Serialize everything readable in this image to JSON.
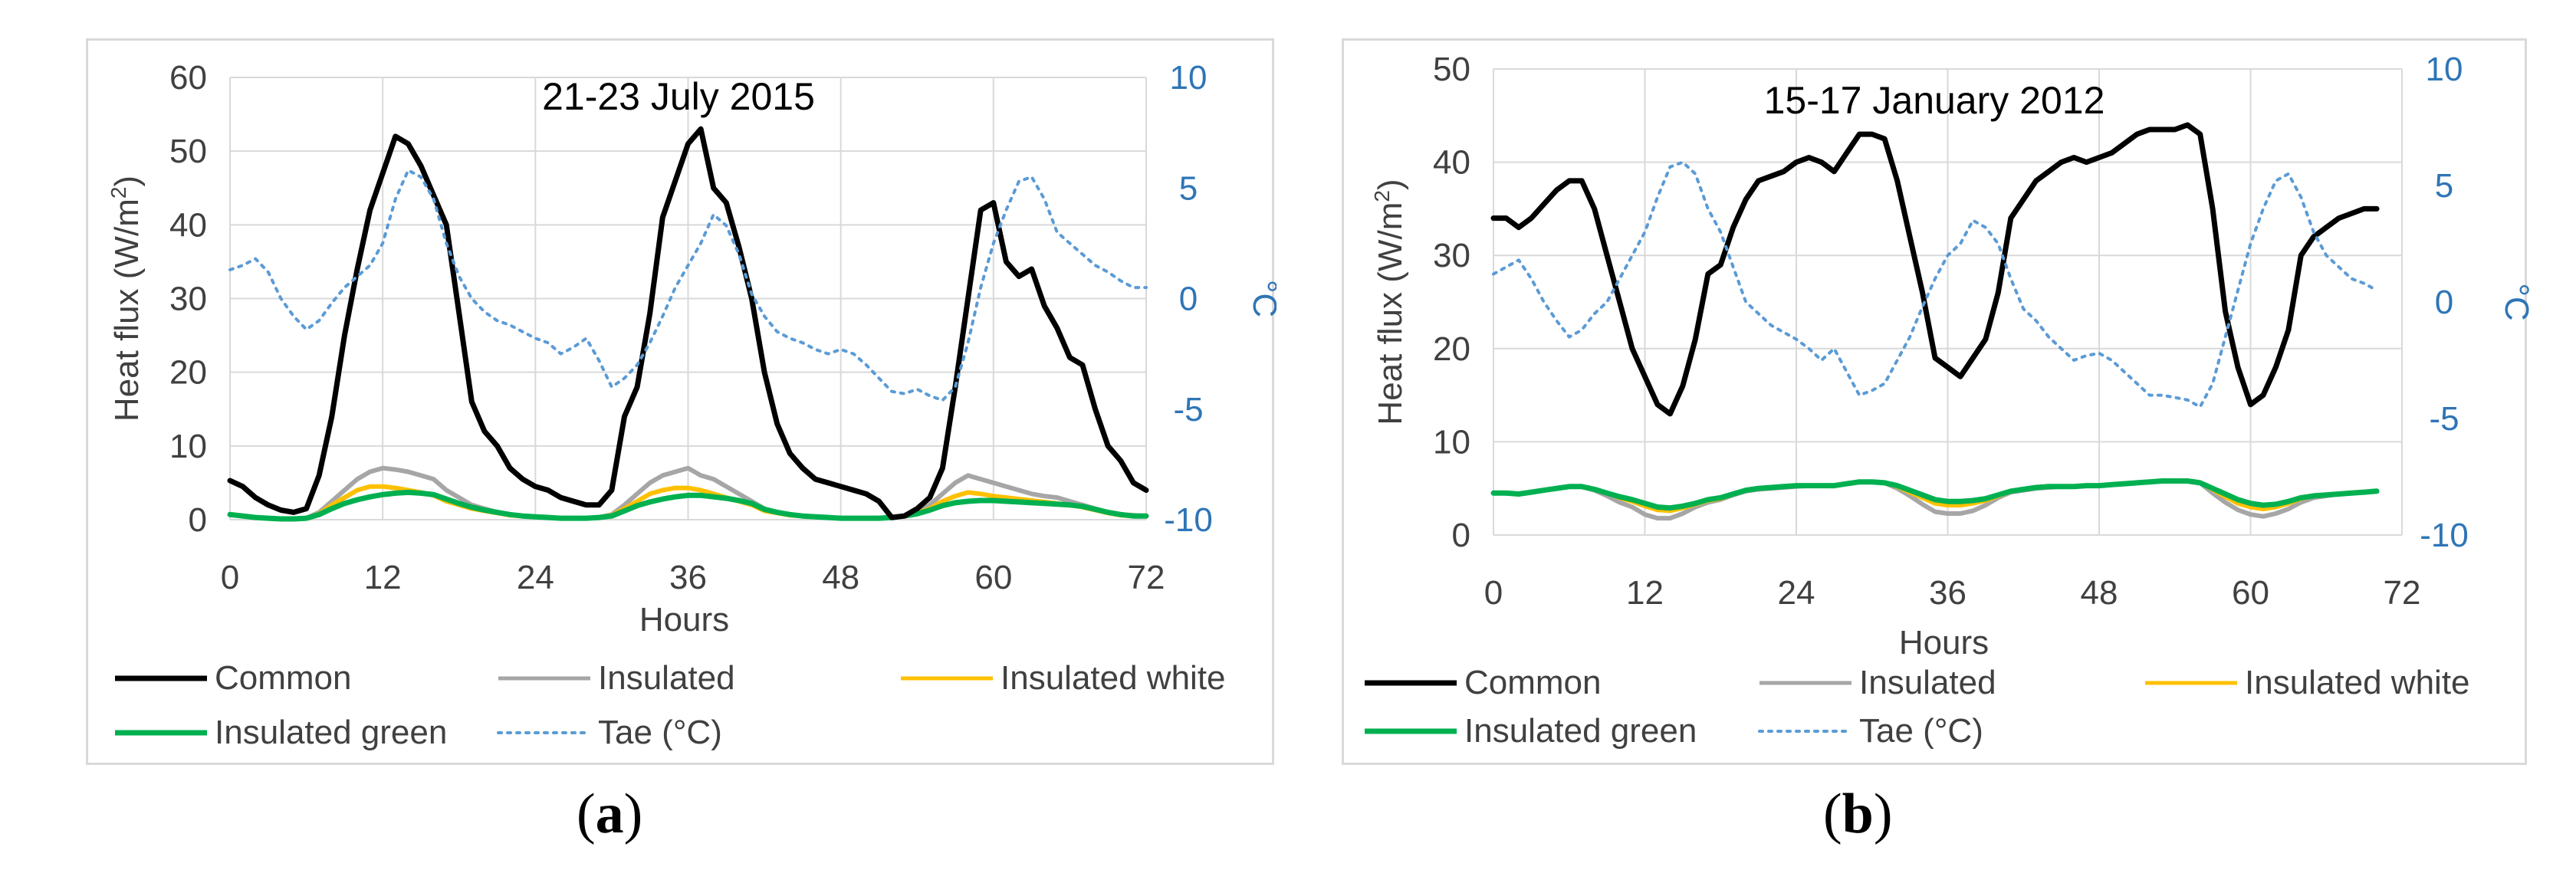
{
  "colors": {
    "common": "#000000",
    "insulated": "#a6a6a6",
    "insulated_white": "#ffc000",
    "insulated_green": "#00b050",
    "tae": "#5b9bd5",
    "grid": "#d9d9d9",
    "text": "#404040",
    "right_axis_text": "#2e75b6"
  },
  "chart_data": [
    {
      "id": "a",
      "type": "line",
      "panel_label": "a",
      "title": "21-23 July 2015",
      "xlabel": "Hours",
      "ylabel_left": "Heat flux (W/m",
      "ylabel_sup": "2",
      "ylabel_left_close": ")",
      "ylabel_right": "°C",
      "xlim": [
        0,
        72
      ],
      "ylim_left": [
        0,
        60
      ],
      "ylim_right": [
        -10,
        10
      ],
      "x_ticks": [
        0,
        12,
        24,
        36,
        48,
        60,
        72
      ],
      "y_left_ticks": [
        0,
        10,
        20,
        30,
        40,
        50,
        60
      ],
      "y_right_ticks": [
        -10,
        -5,
        0,
        5,
        10
      ],
      "grid": true,
      "legend": [
        "Common",
        "Insulated",
        "Insulated white",
        "Insulated green",
        "Tae (°C)"
      ],
      "x": [
        0,
        1,
        2,
        3,
        4,
        5,
        6,
        7,
        8,
        9,
        10,
        11,
        12,
        13,
        14,
        15,
        16,
        17,
        18,
        19,
        20,
        21,
        22,
        23,
        24,
        25,
        26,
        27,
        28,
        29,
        30,
        31,
        32,
        33,
        34,
        35,
        36,
        37,
        38,
        39,
        40,
        41,
        42,
        43,
        44,
        45,
        46,
        47,
        48,
        49,
        50,
        51,
        52,
        53,
        54,
        55,
        56,
        57,
        58,
        59,
        60,
        61,
        62,
        63,
        64,
        65,
        66,
        67,
        68,
        69,
        70,
        71,
        72
      ],
      "series": [
        {
          "name": "Common",
          "axis": "left",
          "style": "solid",
          "width": 7,
          "values": [
            5.3,
            4.5,
            3,
            2,
            1.3,
            1,
            1.5,
            6,
            14,
            25,
            34,
            42,
            47,
            52,
            51,
            48,
            44,
            40,
            28,
            16,
            12,
            10,
            7,
            5.5,
            4.5,
            4,
            3,
            2.5,
            2,
            2,
            4,
            14,
            18,
            28,
            41,
            46,
            51,
            53,
            45,
            43,
            37,
            30,
            20,
            13,
            9,
            7,
            5.5,
            5,
            4.5,
            4,
            3.5,
            2.5,
            0.3,
            0.5,
            1.5,
            3,
            7,
            18,
            30,
            42,
            43,
            35,
            33,
            34,
            29,
            26,
            22,
            21,
            15,
            10,
            8,
            5,
            4
          ]
        },
        {
          "name": "Insulated",
          "axis": "left",
          "style": "solid",
          "width": 6,
          "values": [
            0.7,
            0.5,
            0.3,
            0.2,
            0.1,
            0.1,
            0.2,
            1,
            2.5,
            4,
            5.5,
            6.5,
            7,
            6.8,
            6.5,
            6,
            5.5,
            4,
            3,
            2,
            1.5,
            1,
            0.7,
            0.5,
            0.4,
            0.3,
            0.2,
            0.2,
            0.2,
            0.3,
            0.7,
            2,
            3.5,
            5,
            6,
            6.5,
            7,
            6,
            5.5,
            4.5,
            3.5,
            2.5,
            1.5,
            1,
            0.7,
            0.5,
            0.4,
            0.3,
            0.2,
            0.2,
            0.2,
            0.2,
            0.3,
            0.5,
            1,
            2,
            3.5,
            5,
            6,
            5.5,
            5,
            4.5,
            4,
            3.5,
            3.2,
            3,
            2.5,
            2,
            1.5,
            1,
            0.7,
            0.6,
            0.5
          ]
        },
        {
          "name": "Insulated white",
          "axis": "left",
          "style": "solid",
          "width": 6,
          "values": [
            0.7,
            0.5,
            0.3,
            0.2,
            0.1,
            0.1,
            0.2,
            0.8,
            2,
            3,
            4,
            4.5,
            4.5,
            4.3,
            4,
            3.7,
            3.3,
            2.5,
            2,
            1.5,
            1.2,
            0.9,
            0.6,
            0.5,
            0.4,
            0.3,
            0.2,
            0.2,
            0.2,
            0.3,
            0.6,
            1.5,
            2.5,
            3.5,
            4,
            4.3,
            4.3,
            4,
            3.5,
            3,
            2.5,
            2,
            1.2,
            0.9,
            0.6,
            0.5,
            0.4,
            0.3,
            0.2,
            0.2,
            0.2,
            0.2,
            0.3,
            0.5,
            0.9,
            1.5,
            2.5,
            3.2,
            3.7,
            3.5,
            3.2,
            3,
            2.8,
            2.6,
            2.4,
            2.2,
            2,
            1.7,
            1.3,
            0.9,
            0.6,
            0.5,
            0.5
          ]
        },
        {
          "name": "Insulated green",
          "axis": "left",
          "style": "solid",
          "width": 7,
          "values": [
            0.7,
            0.5,
            0.3,
            0.2,
            0.1,
            0.1,
            0.2,
            0.7,
            1.5,
            2.2,
            2.7,
            3.1,
            3.4,
            3.6,
            3.7,
            3.6,
            3.4,
            2.8,
            2.2,
            1.7,
            1.3,
            1,
            0.7,
            0.5,
            0.4,
            0.3,
            0.2,
            0.2,
            0.2,
            0.3,
            0.5,
            1.2,
            1.9,
            2.4,
            2.8,
            3.1,
            3.3,
            3.3,
            3.1,
            2.9,
            2.6,
            2.2,
            1.4,
            1,
            0.7,
            0.5,
            0.4,
            0.3,
            0.2,
            0.2,
            0.2,
            0.2,
            0.3,
            0.5,
            0.8,
            1.3,
            1.9,
            2.3,
            2.5,
            2.6,
            2.6,
            2.5,
            2.4,
            2.3,
            2.2,
            2.1,
            2,
            1.8,
            1.4,
            1,
            0.7,
            0.5,
            0.5
          ]
        },
        {
          "name": "Tae (°C)",
          "axis": "right",
          "style": "dotted",
          "width": 4,
          "values": [
            1.3,
            1.5,
            1.8,
            1.2,
            0,
            -0.8,
            -1.4,
            -1,
            -0.2,
            0.5,
            1,
            1.5,
            2.5,
            4.5,
            5.8,
            5.5,
            4.5,
            2.5,
            1,
            0,
            -0.6,
            -1,
            -1.2,
            -1.5,
            -1.8,
            -2,
            -2.5,
            -2.2,
            -1.8,
            -2.8,
            -4,
            -3.6,
            -3,
            -2,
            -0.8,
            0.5,
            1.5,
            2.5,
            3.8,
            3.3,
            2,
            0.2,
            -0.8,
            -1.5,
            -1.8,
            -2,
            -2.3,
            -2.5,
            -2.3,
            -2.5,
            -3,
            -3.6,
            -4.2,
            -4.3,
            -4.1,
            -4.4,
            -4.6,
            -4,
            -2,
            0.5,
            2.5,
            4,
            5.3,
            5.5,
            4.5,
            3,
            2.5,
            2,
            1.5,
            1.2,
            0.8,
            0.5,
            0.5
          ]
        }
      ]
    },
    {
      "id": "b",
      "type": "line",
      "panel_label": "b",
      "title": "15-17 January 2012",
      "xlabel": "Hours",
      "ylabel_left": "Heat flux (W/m",
      "ylabel_sup": "2",
      "ylabel_left_close": ")",
      "ylabel_right": "°C",
      "xlim": [
        0,
        72
      ],
      "ylim_left": [
        0,
        50
      ],
      "ylim_right": [
        -10,
        10
      ],
      "x_ticks": [
        0,
        12,
        24,
        36,
        48,
        60,
        72
      ],
      "y_left_ticks": [
        0,
        10,
        20,
        30,
        40,
        50
      ],
      "y_right_ticks": [
        -10,
        -5,
        0,
        5,
        10
      ],
      "grid": true,
      "legend": [
        "Common",
        "Insulated",
        "Insulated white",
        "Insulated green",
        "Tae (°C)"
      ],
      "x": [
        0,
        1,
        2,
        3,
        4,
        5,
        6,
        7,
        8,
        9,
        10,
        11,
        12,
        13,
        14,
        15,
        16,
        17,
        18,
        19,
        20,
        21,
        22,
        23,
        24,
        25,
        26,
        27,
        28,
        29,
        30,
        31,
        32,
        33,
        34,
        35,
        36,
        37,
        38,
        39,
        40,
        41,
        42,
        43,
        44,
        45,
        46,
        47,
        48,
        49,
        50,
        51,
        52,
        53,
        54,
        55,
        56,
        57,
        58,
        59,
        60,
        61,
        62,
        63,
        64,
        65,
        66,
        67,
        68,
        69,
        70
      ],
      "series": [
        {
          "name": "Common",
          "axis": "left",
          "style": "solid",
          "width": 7,
          "values": [
            34,
            34,
            33,
            34,
            35.5,
            37,
            38,
            38,
            35,
            30,
            25,
            20,
            17,
            14,
            13,
            16,
            21,
            28,
            29,
            33,
            36,
            38,
            38.5,
            39,
            40,
            40.5,
            40,
            39,
            41,
            43,
            43,
            42.5,
            38,
            32,
            26,
            19,
            18,
            17,
            19,
            21,
            26,
            34,
            36,
            38,
            39,
            40,
            40.5,
            40,
            40.5,
            41,
            42,
            43,
            43.5,
            43.5,
            43.5,
            44,
            43,
            35,
            24,
            18,
            14,
            15,
            18,
            22,
            30,
            32,
            33,
            34,
            34.5,
            35,
            35
          ]
        },
        {
          "name": "Insulated",
          "axis": "left",
          "style": "solid",
          "width": 6,
          "values": [
            4.5,
            4.5,
            4.4,
            4.6,
            4.8,
            5,
            5.2,
            5.2,
            4.8,
            4.2,
            3.5,
            3,
            2.2,
            1.8,
            1.8,
            2.3,
            3,
            3.5,
            3.8,
            4.3,
            4.7,
            4.9,
            5,
            5.1,
            5.2,
            5.3,
            5.3,
            5.3,
            5.5,
            5.7,
            5.7,
            5.6,
            5,
            4.2,
            3.3,
            2.5,
            2.3,
            2.3,
            2.6,
            3.2,
            4,
            4.6,
            4.8,
            5,
            5.1,
            5.2,
            5.2,
            5.3,
            5.3,
            5.4,
            5.5,
            5.6,
            5.7,
            5.8,
            5.8,
            5.8,
            5.6,
            4.5,
            3.5,
            2.7,
            2.2,
            2,
            2.3,
            2.8,
            3.5,
            4,
            4.2,
            4.4,
            4.5,
            4.6,
            4.7
          ]
        },
        {
          "name": "Insulated white",
          "axis": "left",
          "style": "solid",
          "width": 6,
          "values": [
            4.5,
            4.5,
            4.4,
            4.6,
            4.8,
            5,
            5.2,
            5.2,
            4.9,
            4.5,
            4,
            3.6,
            3.1,
            2.7,
            2.6,
            2.9,
            3.3,
            3.7,
            3.9,
            4.4,
            4.8,
            5,
            5.1,
            5.2,
            5.3,
            5.3,
            5.3,
            5.3,
            5.5,
            5.7,
            5.7,
            5.6,
            5.2,
            4.6,
            4,
            3.4,
            3.2,
            3.2,
            3.4,
            3.7,
            4.2,
            4.7,
            4.9,
            5.1,
            5.2,
            5.2,
            5.2,
            5.3,
            5.3,
            5.4,
            5.5,
            5.6,
            5.7,
            5.8,
            5.8,
            5.8,
            5.6,
            4.9,
            4.1,
            3.4,
            3,
            2.8,
            3,
            3.4,
            3.9,
            4.2,
            4.3,
            4.4,
            4.5,
            4.6,
            4.7
          ]
        },
        {
          "name": "Insulated green",
          "axis": "left",
          "style": "solid",
          "width": 7,
          "values": [
            4.5,
            4.5,
            4.4,
            4.6,
            4.8,
            5,
            5.2,
            5.2,
            4.9,
            4.5,
            4.1,
            3.8,
            3.4,
            3,
            2.9,
            3.1,
            3.4,
            3.8,
            4,
            4.4,
            4.8,
            5,
            5.1,
            5.2,
            5.3,
            5.3,
            5.3,
            5.3,
            5.5,
            5.7,
            5.7,
            5.6,
            5.3,
            4.8,
            4.3,
            3.8,
            3.6,
            3.6,
            3.7,
            3.9,
            4.3,
            4.7,
            4.9,
            5.1,
            5.2,
            5.2,
            5.2,
            5.3,
            5.3,
            5.4,
            5.5,
            5.6,
            5.7,
            5.8,
            5.8,
            5.8,
            5.6,
            5,
            4.4,
            3.8,
            3.4,
            3.2,
            3.3,
            3.6,
            4,
            4.2,
            4.3,
            4.4,
            4.5,
            4.6,
            4.7
          ]
        },
        {
          "name": "Tae (°C)",
          "axis": "right",
          "style": "dotted",
          "width": 4,
          "values": [
            1.2,
            1.5,
            1.8,
            1,
            0,
            -0.8,
            -1.5,
            -1.2,
            -0.5,
            0,
            1,
            2,
            3,
            4.5,
            5.8,
            6,
            5.5,
            4,
            3,
            1.5,
            0,
            -0.5,
            -1,
            -1.3,
            -1.6,
            -2,
            -2.5,
            -2,
            -3,
            -4,
            -3.8,
            -3.5,
            -2.5,
            -1.5,
            -0.2,
            1,
            2,
            2.5,
            3.5,
            3.2,
            2.5,
            1,
            -0.3,
            -0.8,
            -1.5,
            -2,
            -2.5,
            -2.3,
            -2.2,
            -2.5,
            -3,
            -3.5,
            -4,
            -4,
            -4.1,
            -4.2,
            -4.5,
            -3.5,
            -1.5,
            0.5,
            2.5,
            4,
            5.2,
            5.5,
            4.5,
            3,
            2,
            1.5,
            1,
            0.8,
            0.5
          ]
        }
      ]
    }
  ]
}
